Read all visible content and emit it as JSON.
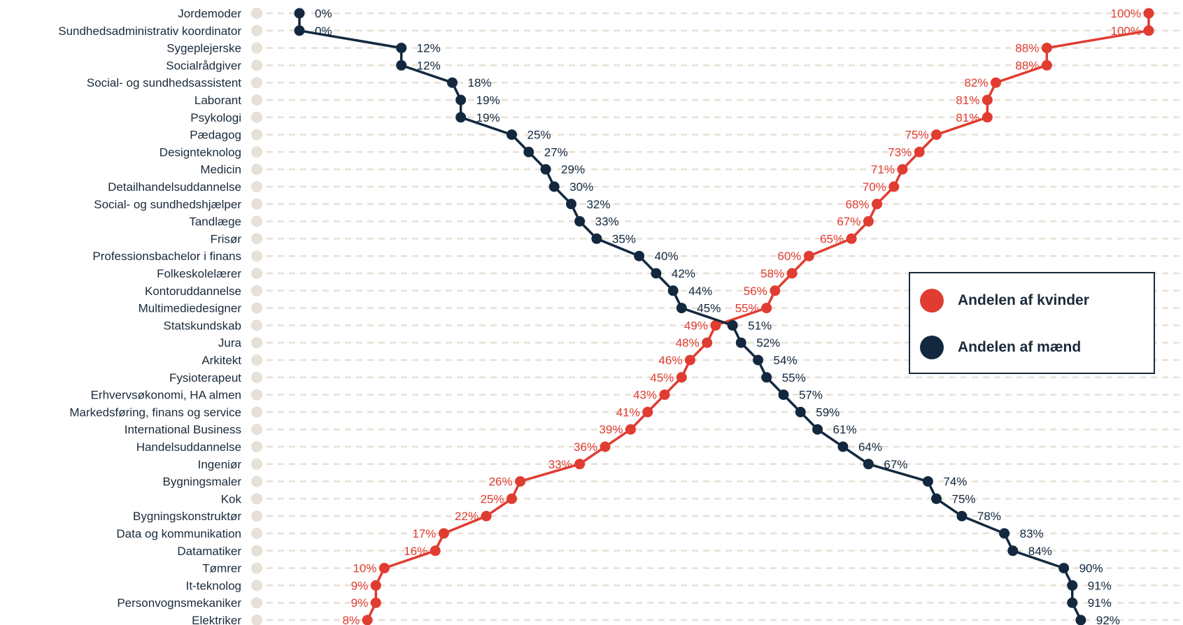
{
  "chart_data": {
    "type": "line",
    "categories": [
      "Jordemoder",
      "Sundhedsadministrativ koordinator",
      "Sygeplejerske",
      "Socialrådgiver",
      "Social- og sundhedsassistent",
      "Laborant",
      "Psykologi",
      "Pædagog",
      "Designteknolog",
      "Medicin",
      "Detailhandelsuddannelse",
      "Social- og sundhedshjælper",
      "Tandlæge",
      "Frisør",
      "Professionsbachelor i finans",
      "Folkeskolelærer",
      "Kontoruddannelse",
      "Multimediedesigner",
      "Statskundskab",
      "Jura",
      "Arkitekt",
      "Fysioterapeut",
      "Erhvervsøkonomi, HA almen",
      "Markedsføring, finans og service",
      "International Business",
      "Handelsuddannelse",
      "Ingeniør",
      "Bygningsmaler",
      "Kok",
      "Bygningskonstruktør",
      "Data og kommunikation",
      "Datamatiker",
      "Tømrer",
      "It-teknolog",
      "Personvognsmekaniker",
      "Elektriker"
    ],
    "series": [
      {
        "name": "Andelen af kvinder",
        "color": "#e03c31",
        "values": [
          100,
          100,
          88,
          88,
          82,
          81,
          81,
          75,
          73,
          71,
          70,
          68,
          67,
          65,
          60,
          58,
          56,
          55,
          49,
          48,
          46,
          45,
          43,
          41,
          39,
          36,
          33,
          26,
          25,
          22,
          17,
          16,
          10,
          9,
          9,
          8
        ],
        "labels": [
          "100%",
          "100%",
          "88%",
          "88%",
          "82%",
          "81%",
          "81%",
          "75%",
          "73%",
          "71%",
          "70%",
          "68%",
          "67%",
          "65%",
          "60%",
          "58%",
          "56%",
          "55%",
          "49%",
          "48%",
          "46%",
          "45%",
          "43%",
          "41%",
          "39%",
          "36%",
          "33%",
          "26%",
          "25%",
          "22%",
          "17%",
          "16%",
          "10%",
          "9%",
          "9%",
          "8%"
        ]
      },
      {
        "name": "Andelen af mænd",
        "color": "#13283f",
        "values": [
          0,
          0,
          12,
          12,
          18,
          19,
          19,
          25,
          27,
          29,
          30,
          32,
          33,
          35,
          40,
          42,
          44,
          45,
          51,
          52,
          54,
          55,
          57,
          59,
          61,
          64,
          67,
          74,
          75,
          78,
          83,
          84,
          90,
          91,
          91,
          92
        ],
        "labels": [
          "0%",
          "0%",
          "12%",
          "12%",
          "18%",
          "19%",
          "19%",
          "25%",
          "27%",
          "29%",
          "30%",
          "32%",
          "33%",
          "35%",
          "40%",
          "42%",
          "44%",
          "45%",
          "51%",
          "52%",
          "54%",
          "55%",
          "57%",
          "59%",
          "61%",
          "64%",
          "67%",
          "74%",
          "75%",
          "78%",
          "83%",
          "84%",
          "90%",
          "91%",
          "91%",
          "92%"
        ]
      }
    ],
    "xlim": [
      0,
      100
    ],
    "grid": true,
    "legend_position": "right"
  },
  "legend": {
    "women_label": "Andelen af kvinder",
    "men_label": "Andelen af mænd",
    "women_color": "#e03c31",
    "men_color": "#13283f"
  },
  "style": {
    "grid_color": "#e6e0d6",
    "text_color": "#1a2a3a"
  }
}
